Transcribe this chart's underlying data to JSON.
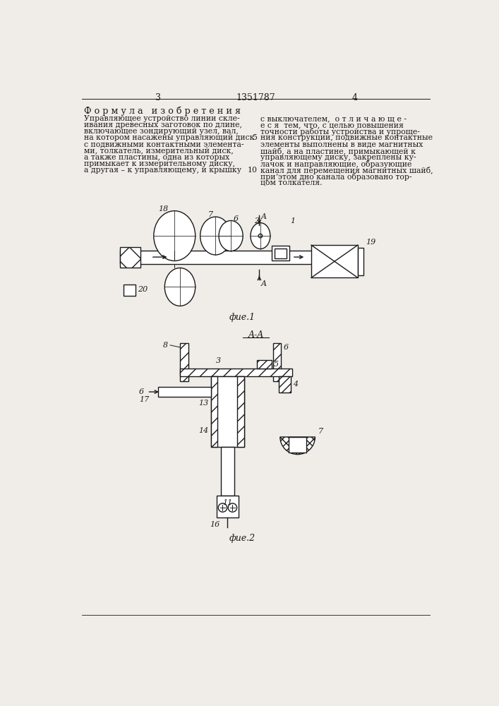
{
  "page_number_left": "3",
  "page_number_right": "4",
  "patent_number": "1351787",
  "title_left": "Ф о р м у л а   и з о б р е т е н и я",
  "left_col_lines": [
    "Управляющее устройство линии скле-",
    "ивания древесных заготовок по длине,",
    "включающее зондирующий узел, вал,",
    "на котором насажены управляющий диск",
    "с подвижными контактными элемента-",
    "ми, толкатель, измерительный диск,",
    "а также пластины, одна из которых",
    "примыкает к измерительному диску,",
    "а другая – к управляющему, и крышку"
  ],
  "right_col_lines": [
    "с выключателем,  о т л и ч а ю щ е -",
    "е с я  тем, что, с целью повышения",
    "точности работы устройства и упроще-",
    "ния конструкции, подвижные контактные",
    "элементы выполнены в виде магнитных",
    "шайб, а на пластине, примыкающей к",
    "управляющему диску, закреплены ку-",
    "лачок и направляющие, образующие",
    "канал для перемещения магнитных шайб,",
    "приʼэтом дно канала образовано тор-",
    "цом толкателя."
  ],
  "fig1_label": "фие.1",
  "fig2_label": "фие.2",
  "fig2_section": "A-A",
  "background_color": "#f0ede8"
}
